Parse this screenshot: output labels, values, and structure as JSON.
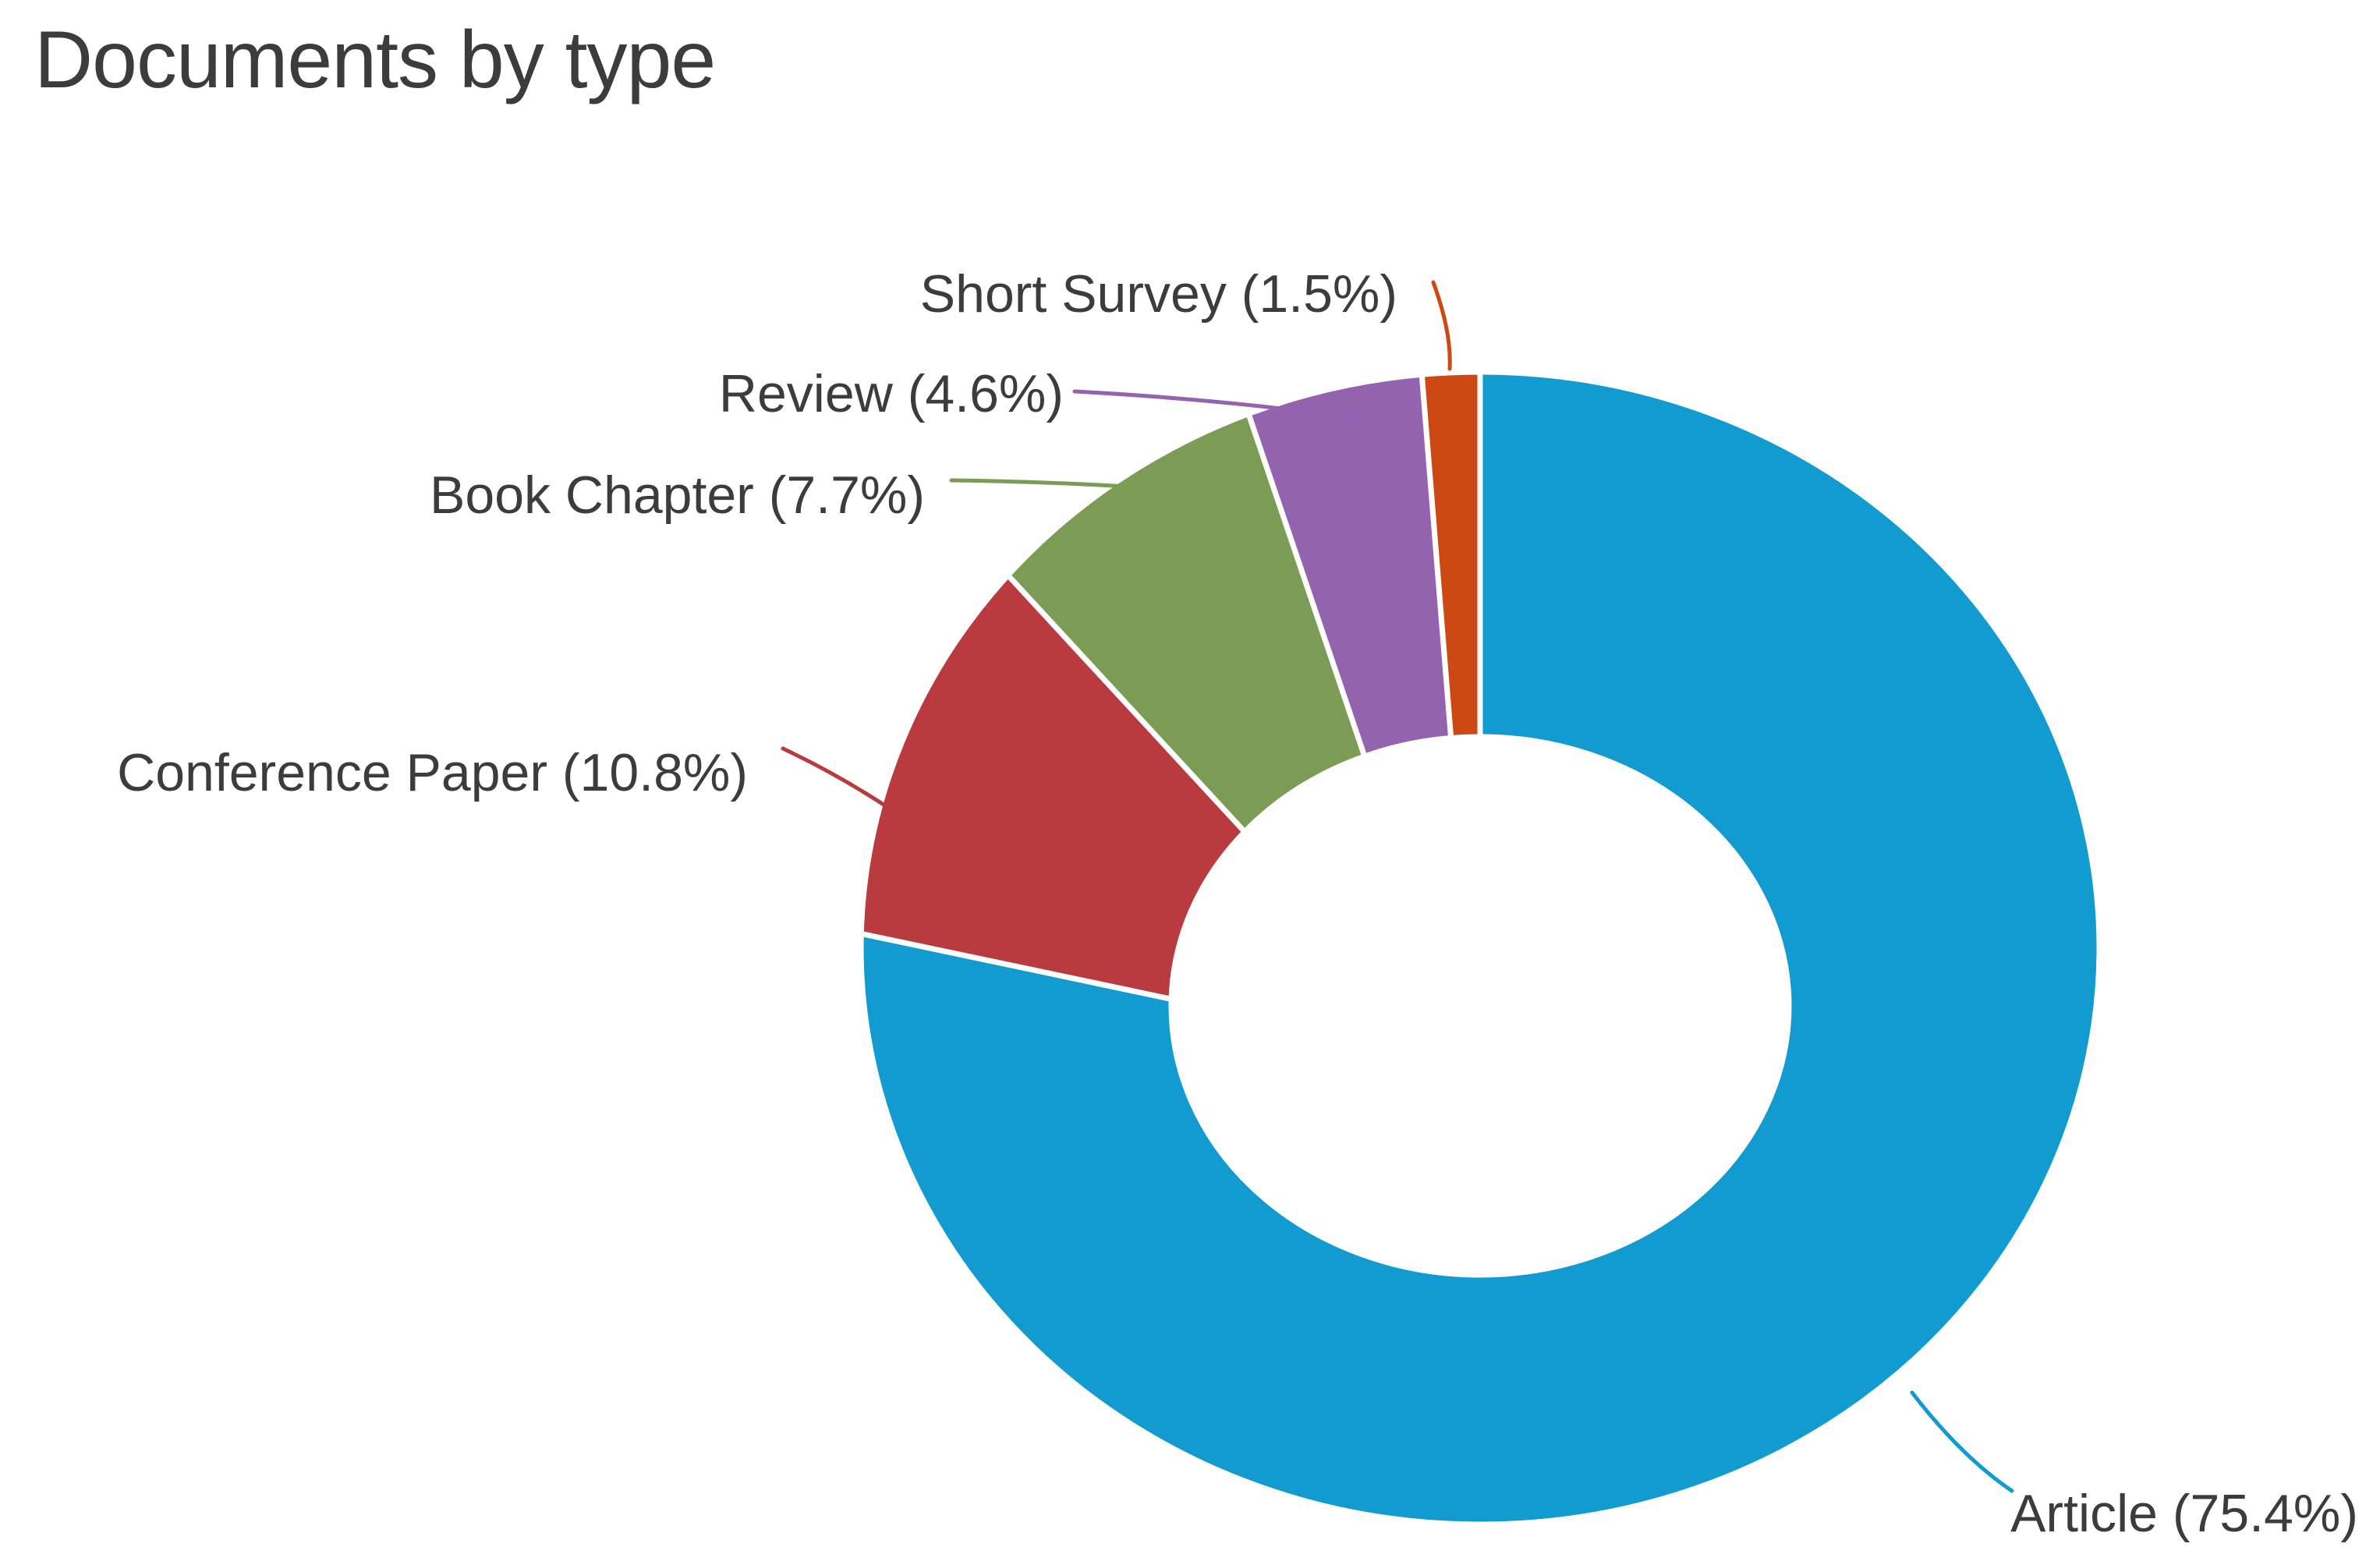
{
  "title": "Documents by type",
  "colors": {
    "background": "#ffffff",
    "text": "#3c3c3c"
  },
  "chart_data": {
    "type": "pie",
    "subtype": "donut",
    "title": "Documents by type",
    "direction": "clockwise",
    "start_angle_deg": 0,
    "legend_position": "callout-labels",
    "segments": [
      {
        "label": "Article",
        "value_pct": 75.4,
        "display": "Article (75.4%)",
        "color": "#119bd1"
      },
      {
        "label": "Conference Paper",
        "value_pct": 10.8,
        "display": "Conference Paper (10.8%)",
        "color": "#b93a3f"
      },
      {
        "label": "Book Chapter",
        "value_pct": 7.7,
        "display": "Book Chapter (7.7%)",
        "color": "#7c9c55"
      },
      {
        "label": "Review",
        "value_pct": 4.6,
        "display": "Review (4.6%)",
        "color": "#9363b0"
      },
      {
        "label": "Short Survey",
        "value_pct": 1.5,
        "display": "Short Survey (1.5%)",
        "color": "#cc4913"
      }
    ]
  }
}
